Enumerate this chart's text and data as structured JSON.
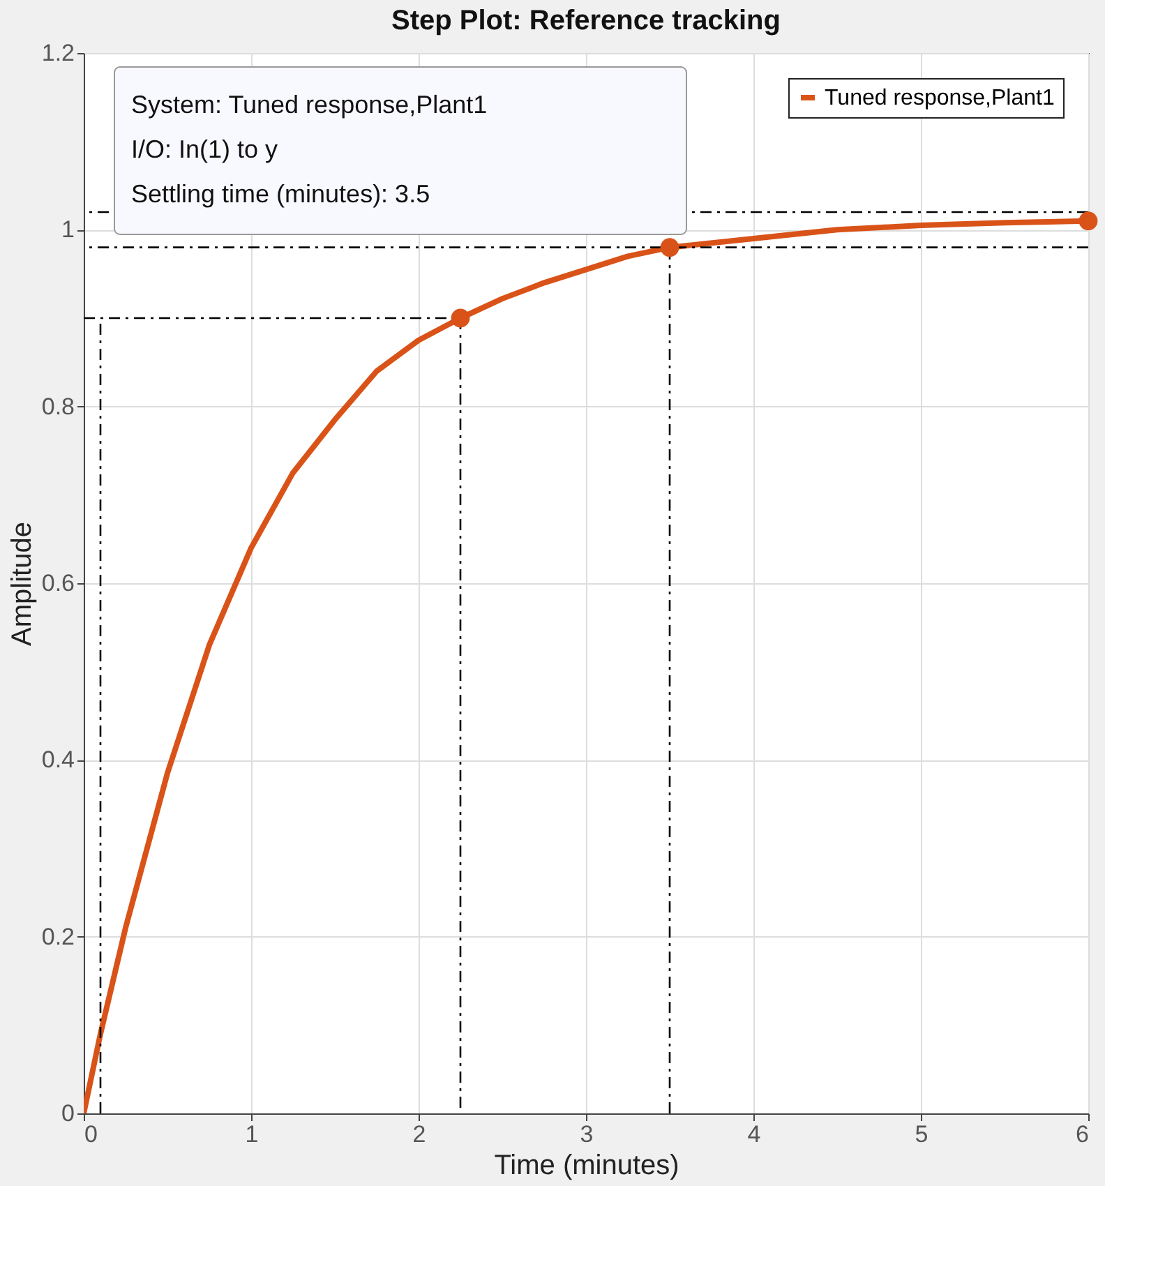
{
  "chart_data": {
    "type": "line",
    "title": "Step Plot: Reference tracking",
    "xlabel": "Time (minutes)",
    "ylabel": "Amplitude",
    "xlim": [
      0,
      6
    ],
    "ylim": [
      0,
      1.2
    ],
    "xticks": [
      0,
      1,
      2,
      3,
      4,
      5,
      6
    ],
    "yticks": [
      0,
      0.2,
      0.4,
      0.6,
      0.8,
      1,
      1.2
    ],
    "grid": true,
    "legend": "top right",
    "annotations": [
      "System: Tuned response,Plant1",
      "I/O: In(1) to y",
      "Settling time (minutes): 3.5"
    ],
    "ref_lines": [
      {
        "axis": "y",
        "value": 1.02,
        "color": "#000000",
        "line_style": "dashed"
      },
      {
        "axis": "y",
        "value": 0.98,
        "color": "#000000",
        "line_style": "dashed"
      }
    ],
    "series": [
      {
        "name": "Tuned response,Plant1",
        "color": "#d95319",
        "type": "line",
        "marker": "none",
        "line_style": "solid",
        "x": [
          0,
          0.1,
          0.25,
          0.5,
          0.75,
          1,
          1.25,
          1.5,
          1.75,
          2,
          2.25,
          2.5,
          2.75,
          3,
          3.25,
          3.5,
          4,
          4.5,
          5,
          5.5,
          6
        ],
        "values": [
          0,
          0.09,
          0.21,
          0.385,
          0.53,
          0.64,
          0.725,
          0.785,
          0.84,
          0.875,
          0.9,
          0.922,
          0.94,
          0.955,
          0.97,
          0.98,
          0.99,
          1.0,
          1.005,
          1.008,
          1.01
        ]
      },
      {
        "color": "#d95319",
        "type": "scatter",
        "marker": "circle",
        "x": [
          2.25,
          3.5,
          6
        ],
        "values": [
          0.9,
          0.98,
          1.01
        ]
      },
      {
        "color": "#000000",
        "type": "line",
        "marker": "none",
        "line_style": "dashed",
        "x": [
          0,
          2.25,
          2.25
        ],
        "values": [
          0.9,
          0.9,
          0
        ]
      },
      {
        "color": "#000000",
        "type": "line",
        "marker": "none",
        "line_style": "dashed",
        "x": [
          0.1,
          0.1
        ],
        "values": [
          0,
          0.9
        ]
      },
      {
        "color": "#000000",
        "type": "line",
        "marker": "none",
        "line_style": "dashed",
        "x": [
          3.5,
          3.5
        ],
        "values": [
          0,
          0.98
        ]
      }
    ]
  }
}
